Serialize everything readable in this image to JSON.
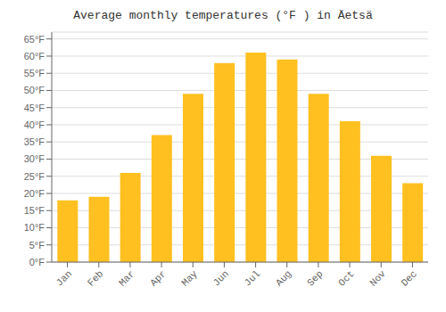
{
  "chart_data": {
    "type": "bar",
    "title": "Average monthly temperatures (°F ) in Äetsä",
    "categories": [
      "Jan",
      "Feb",
      "Mar",
      "Apr",
      "May",
      "Jun",
      "Jul",
      "Aug",
      "Sep",
      "Oct",
      "Nov",
      "Dec"
    ],
    "values": [
      18,
      19,
      26,
      37,
      49,
      58,
      61,
      59,
      49,
      41,
      31,
      23
    ],
    "color": "#FFC020",
    "ylim": [
      0,
      67
    ],
    "yticks": [
      {
        "value": 0,
        "label": "0°F"
      },
      {
        "value": 5,
        "label": "5°F"
      },
      {
        "value": 10,
        "label": "10°F"
      },
      {
        "value": 15,
        "label": "15°F"
      },
      {
        "value": 20,
        "label": "20°F"
      },
      {
        "value": 25,
        "label": "25°F"
      },
      {
        "value": 30,
        "label": "30°F"
      },
      {
        "value": 35,
        "label": "35°F"
      },
      {
        "value": 40,
        "label": "40°F"
      },
      {
        "value": 45,
        "label": "45°F"
      },
      {
        "value": 50,
        "label": "50°F"
      },
      {
        "value": 55,
        "label": "55°F"
      },
      {
        "value": 60,
        "label": "60°F"
      },
      {
        "value": 65,
        "label": "65°F"
      }
    ],
    "grid": true
  }
}
